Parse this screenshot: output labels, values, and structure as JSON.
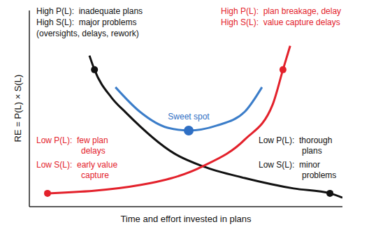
{
  "chart_data": {
    "type": "line",
    "x_label": "Time and effort invested in plans",
    "y_label": "RE = P(L) × S(L)",
    "xlim": [
      0,
      100
    ],
    "ylim": [
      0,
      100
    ],
    "tick_labels": false,
    "grid": false,
    "series": [
      {
        "type": "line",
        "color": "#111111",
        "x": [
          19.2,
          20.8,
          26.3,
          30.8,
          46.4,
          55.4,
          68.8,
          84.4,
          96,
          100
        ],
        "values": [
          77,
          69.8,
          55.5,
          48,
          27,
          20.6,
          14.6,
          9.3,
          6.8,
          4.6
        ]
      },
      {
        "type": "line",
        "color": "#e3212b",
        "x": [
          5.8,
          35.3,
          55.4,
          68.8,
          77.7,
          81,
          83.3
        ],
        "values": [
          6.8,
          11,
          20.6,
          34.2,
          52,
          69.8,
          82
        ]
      },
      {
        "type": "line",
        "color": "#3b7dc9",
        "x": [
          27.5,
          35.3,
          44.2,
          50.9,
          59.8,
          68.8,
          74.3
        ],
        "values": [
          60.9,
          48.4,
          40.2,
          38.8,
          41.3,
          48.4,
          60.9
        ]
      },
      {
        "type": "scatter",
        "marker": "circle",
        "color": "#111111",
        "x": [
          20.8,
          96
        ],
        "values": [
          69.8,
          6.8
        ]
      },
      {
        "type": "scatter",
        "marker": "circle",
        "color": "#e3212b",
        "x": [
          5.8,
          81
        ],
        "values": [
          6.8,
          69.8
        ]
      },
      {
        "type": "scatter",
        "marker": "circle",
        "color": "#2f6fc4",
        "x": [
          50.9
        ],
        "values": [
          38.8
        ]
      }
    ],
    "annotations": [
      {
        "color": "#111111",
        "lines": [
          "High P(L):  inadequate plans",
          "High S(L):  major problems",
          "(oversights, delays, rework)"
        ]
      },
      {
        "color": "#e3212b",
        "lines": [
          "High P(L):  plan breakage, delay",
          "High S(L):  value capture delays"
        ]
      },
      {
        "color": "#2f6fc4",
        "lines": [
          "Sweet spot"
        ]
      },
      {
        "color": "#e3212b",
        "lines": [
          "Low P(L):  few plan",
          "delays",
          "Low S(L):  early value",
          "capture"
        ]
      },
      {
        "color": "#111111",
        "lines": [
          "Low P(L):  thorough",
          "plans",
          "Low S(L):  minor",
          "problems"
        ]
      }
    ]
  }
}
